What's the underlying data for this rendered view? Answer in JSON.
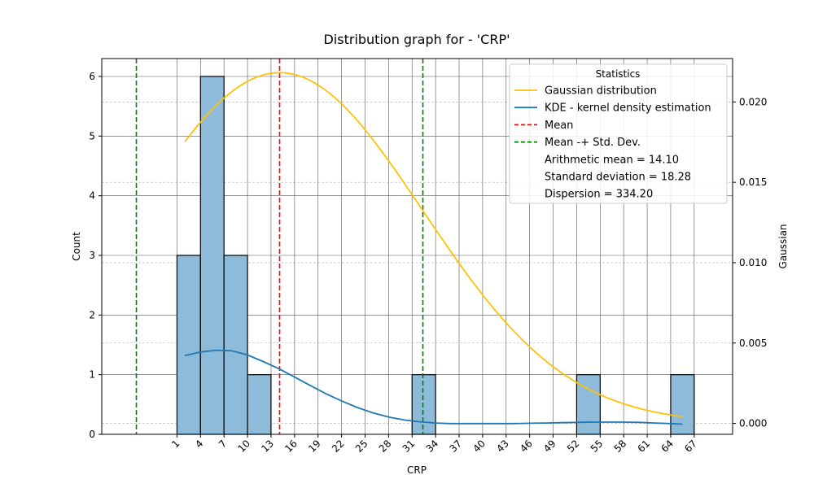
{
  "chart_data": {
    "type": "bar",
    "title": "Distribution graph for - 'CRP'",
    "xlabel": "CRP",
    "ylabel": "Count",
    "y2label": "Gaussian",
    "x_ticks": [
      1,
      4,
      7,
      10,
      13,
      16,
      19,
      22,
      25,
      28,
      31,
      34,
      37,
      40,
      43,
      46,
      49,
      52,
      55,
      58,
      61,
      64,
      67
    ],
    "xlim": [
      -8.6,
      71.9
    ],
    "ylim": [
      0,
      6.3
    ],
    "y_ticks": [
      0,
      1,
      2,
      3,
      4,
      5,
      6
    ],
    "y2lim": [
      -0.00068,
      0.0227
    ],
    "y2_ticks": [
      "0.000",
      "0.005",
      "0.010",
      "0.015",
      "0.020"
    ],
    "y2_tick_values": [
      0,
      0.005,
      0.01,
      0.015,
      0.02
    ],
    "bins": [
      {
        "x0": 1,
        "x1": 4,
        "count": 3
      },
      {
        "x0": 4,
        "x1": 7,
        "count": 6
      },
      {
        "x0": 7,
        "x1": 10,
        "count": 3
      },
      {
        "x0": 10,
        "x1": 13,
        "count": 1
      },
      {
        "x0": 31,
        "x1": 34,
        "count": 1
      },
      {
        "x0": 52,
        "x1": 55,
        "count": 1
      },
      {
        "x0": 64,
        "x1": 67,
        "count": 1
      }
    ],
    "kde": {
      "name": "KDE - kernel density estimation",
      "x": [
        2,
        4,
        6,
        8,
        10,
        12,
        14,
        16,
        18,
        20,
        22,
        24,
        26,
        28,
        30,
        32,
        34,
        36,
        38,
        40,
        42,
        44,
        46,
        48,
        50,
        52,
        54,
        56,
        58,
        60,
        62,
        64,
        65.5
      ],
      "count": [
        1.32,
        1.38,
        1.41,
        1.4,
        1.33,
        1.22,
        1.1,
        0.96,
        0.82,
        0.68,
        0.56,
        0.45,
        0.36,
        0.29,
        0.24,
        0.21,
        0.19,
        0.18,
        0.18,
        0.18,
        0.18,
        0.18,
        0.185,
        0.19,
        0.195,
        0.2,
        0.205,
        0.205,
        0.205,
        0.2,
        0.19,
        0.18,
        0.17
      ]
    },
    "gaussian": {
      "name": "Gaussian distribution",
      "mean": 14.1,
      "std": 18.28,
      "x_range": [
        2,
        65.5
      ]
    },
    "mean_line": {
      "name": "Mean",
      "x": 14.1
    },
    "std_lines": {
      "name": "Mean -+ Std. Dev.",
      "x": [
        -4.18,
        32.38
      ]
    },
    "legend": {
      "title": "Statistics",
      "placement": "top-right",
      "entries": [
        {
          "label": "Gaussian distribution",
          "style": "line",
          "color": "#ffc107"
        },
        {
          "label": "KDE - kernel density estimation",
          "style": "line",
          "color": "#1f77b4"
        },
        {
          "label": "Mean",
          "style": "dashed",
          "color": "#ff0000"
        },
        {
          "label": "Mean -+ Std. Dev.",
          "style": "dashed",
          "color": "#008000"
        },
        {
          "label": "Arithmetic mean = 14.10",
          "style": "none"
        },
        {
          "label": "Standard deviation = 18.28",
          "style": "none"
        },
        {
          "label": "Dispersion = 334.20",
          "style": "none"
        }
      ]
    },
    "colors": {
      "bar_fill": "#8fbbda",
      "bar_edge": "#000000",
      "kde": "#1f77b4",
      "gaussian": "#ffc107",
      "mean": "#ff0000",
      "std": "#008000",
      "grid_major": "#555555",
      "grid_minor": "#b0b0b0"
    },
    "grid": true
  }
}
